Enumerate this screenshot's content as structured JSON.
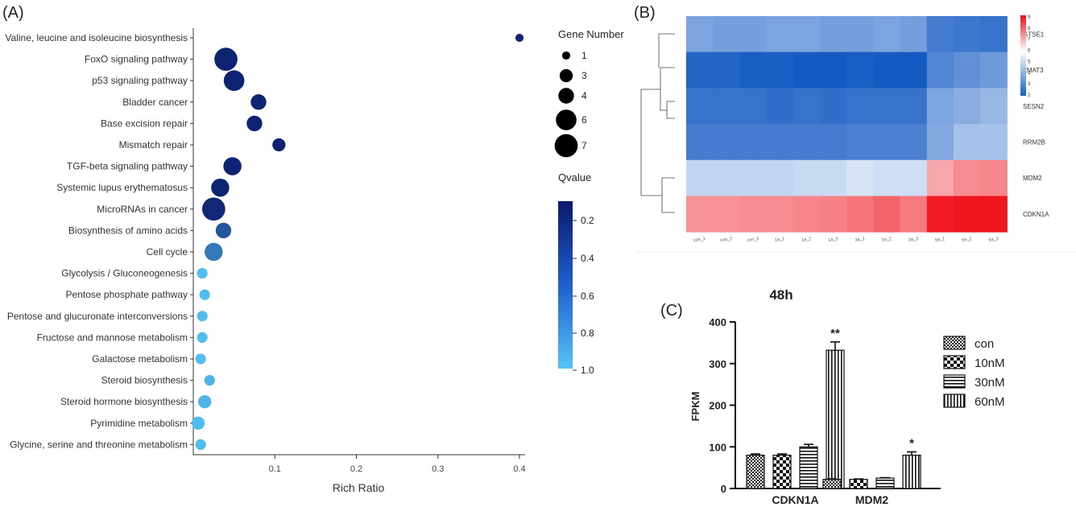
{
  "panel_labels": [
    "(A)",
    "(B)",
    "(C)"
  ],
  "chart_data": [
    {
      "type": "scatter",
      "panel": "(A)",
      "xlabel": "Rich Ratio",
      "xlim": [
        0,
        0.4
      ],
      "xticks": [
        "0.1",
        "0.2",
        "0.3",
        "0.4"
      ],
      "categories": [
        "Valine, leucine and isoleucine biosynthesis",
        "FoxO signaling pathway",
        "p53 signaling pathway",
        "Bladder cancer",
        "Base excision repair",
        "Mismatch repair",
        "TGF-beta signaling pathway",
        "Systemic lupus erythematosus",
        "MicroRNAs in cancer",
        "Biosynthesis of amino acids",
        "Cell cycle",
        "Glycolysis / Gluconeogenesis",
        "Pentose phosphate pathway",
        "Pentose and glucuronate interconversions",
        "Fructose and mannose metabolism",
        "Galactose metabolism",
        "Steroid biosynthesis",
        "Steroid hormone biosynthesis",
        "Pyrimidine metabolism",
        "Glycine, serine and threonine metabolism"
      ],
      "rich_ratio": [
        0.4,
        0.04,
        0.05,
        0.08,
        0.075,
        0.105,
        0.048,
        0.033,
        0.025,
        0.037,
        0.025,
        0.011,
        0.014,
        0.011,
        0.011,
        0.009,
        0.02,
        0.014,
        0.006,
        0.009
      ],
      "gene_number": [
        1,
        7,
        6,
        4,
        4,
        3,
        5,
        5,
        7,
        4,
        5,
        2,
        2,
        2,
        2,
        2,
        2,
        3,
        3,
        2
      ],
      "qvalue": [
        0.05,
        0.05,
        0.05,
        0.05,
        0.05,
        0.05,
        0.05,
        0.05,
        0.08,
        0.35,
        0.55,
        0.95,
        0.95,
        0.95,
        0.95,
        0.95,
        0.9,
        0.9,
        0.95,
        0.95
      ],
      "size_legend": {
        "title": "Gene Number",
        "labels": [
          "1",
          "3",
          "4",
          "6",
          "7"
        ]
      },
      "color_legend": {
        "title": "Qvalue",
        "labels": [
          "0.2",
          "0.4",
          "0.6",
          "0.8",
          "1.0"
        ],
        "colors": [
          "#0a1a6b",
          "#55c4f5"
        ]
      }
    },
    {
      "type": "heatmap",
      "panel": "(B)",
      "rows": [
        "GTSE1",
        "ZMAT3",
        "SESN2",
        "RRM2B",
        "MDM2",
        "CDKN1A"
      ],
      "columns": [
        "con_1",
        "con_2",
        "con_3",
        "1a_1",
        "1a_2",
        "1a_3",
        "3a_1",
        "3a_2",
        "3a_3",
        "6a_1",
        "6a_2",
        "6a_3"
      ],
      "values": [
        [
          3.6,
          3.5,
          3.5,
          3.6,
          3.6,
          3.5,
          3.5,
          3.6,
          3.5,
          2.8,
          2.7,
          2.6
        ],
        [
          2.3,
          2.3,
          2.2,
          2.2,
          2.1,
          2.1,
          2.2,
          2.1,
          2.1,
          3.0,
          3.2,
          3.4
        ],
        [
          2.6,
          2.6,
          2.6,
          2.5,
          2.6,
          2.5,
          2.6,
          2.6,
          2.6,
          3.6,
          3.8,
          4.0
        ],
        [
          2.8,
          2.8,
          2.8,
          2.8,
          2.8,
          2.8,
          2.9,
          2.9,
          2.9,
          3.7,
          4.2,
          4.2
        ],
        [
          4.6,
          4.6,
          4.6,
          4.6,
          4.7,
          4.7,
          4.9,
          4.8,
          4.8,
          6.3,
          6.8,
          6.9
        ],
        [
          6.7,
          6.7,
          6.8,
          6.8,
          6.9,
          7.0,
          7.2,
          7.5,
          7.1,
          8.8,
          8.9,
          8.9
        ]
      ],
      "colorbar": {
        "min": 2,
        "max": 9,
        "ticks": [
          "9",
          "8",
          "7",
          "6",
          "5",
          "4",
          "3",
          "2"
        ]
      }
    },
    {
      "type": "bar",
      "panel": "(C)",
      "title": "48h",
      "ylabel": "FPKM",
      "ylim": [
        0,
        400
      ],
      "yticks": [
        "0",
        "100",
        "200",
        "300",
        "400"
      ],
      "categories": [
        "CDKN1A",
        "MDM2"
      ],
      "series": [
        {
          "name": "con",
          "values": [
            80,
            22
          ],
          "errors": [
            3,
            1
          ]
        },
        {
          "name": "10nM",
          "values": [
            80,
            22
          ],
          "errors": [
            3,
            1
          ]
        },
        {
          "name": "30nM",
          "values": [
            100,
            25
          ],
          "errors": [
            6,
            1
          ]
        },
        {
          "name": "60nM",
          "values": [
            332,
            80
          ],
          "errors": [
            20,
            8
          ]
        }
      ],
      "significance": [
        [
          "",
          "",
          "",
          "**"
        ],
        [
          "",
          "",
          "",
          "*"
        ]
      ]
    }
  ]
}
